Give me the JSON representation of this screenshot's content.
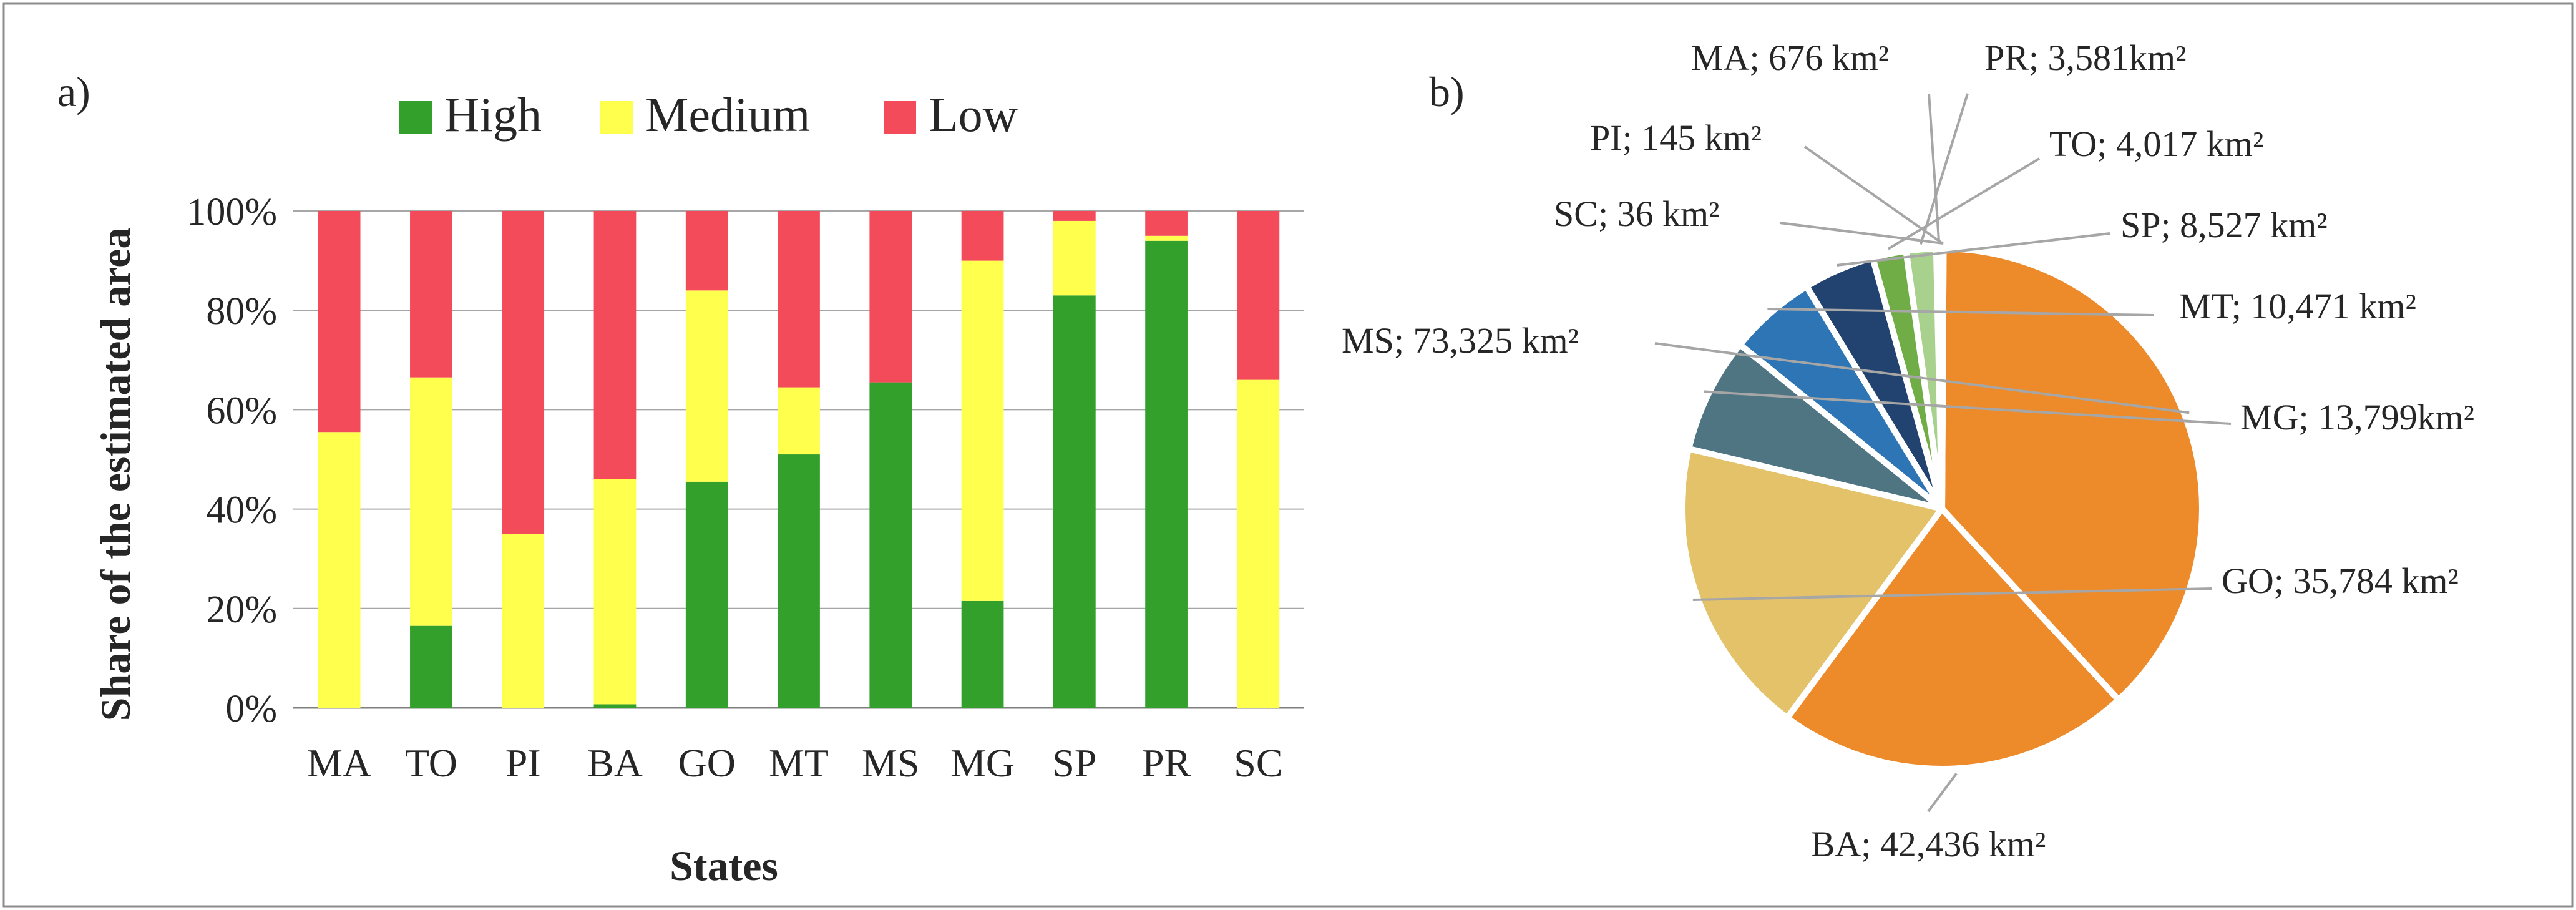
{
  "chart_data": [
    {
      "panel_label": "a)",
      "type": "bar",
      "stacked": true,
      "categories": [
        "MA",
        "TO",
        "PI",
        "BA",
        "GO",
        "MT",
        "MS",
        "MG",
        "SP",
        "PR",
        "SC"
      ],
      "series": [
        {
          "name": "High",
          "color": "#33a02c",
          "values": [
            0,
            16.5,
            0,
            0.7,
            45.5,
            51,
            65.5,
            21.5,
            83,
            94,
            0
          ]
        },
        {
          "name": "Medium",
          "color": "#ffff4d",
          "values": [
            55.5,
            50,
            35,
            45.3,
            38.5,
            13.5,
            0,
            68.5,
            15,
            1,
            66
          ]
        },
        {
          "name": "Low",
          "color": "#f44b5b",
          "values": [
            44.5,
            33.5,
            65,
            54,
            16,
            35.5,
            34.5,
            10,
            2,
            5,
            34
          ]
        }
      ],
      "xlabel": "States",
      "ylabel": "Share of the estimated area",
      "ylim": [
        0,
        100
      ],
      "yticks": [
        "0%",
        "20%",
        "40%",
        "60%",
        "80%",
        "100%"
      ],
      "grid": true,
      "legend_position": "top"
    },
    {
      "panel_label": "b)",
      "type": "pie",
      "start": "top",
      "direction": "counterclockwise",
      "slices": [
        {
          "name": "MA",
          "value": 676,
          "label": "MA; 676 km²",
          "color": "#f4b183"
        },
        {
          "name": "PR",
          "value": 3581,
          "label": "PR; 3,581km²",
          "color": "#a9d18e"
        },
        {
          "name": "TO",
          "value": 4017,
          "label": "TO; 4,017 km²",
          "color": "#70ad47"
        },
        {
          "name": "SP",
          "value": 8527,
          "label": "SP; 8,527 km²",
          "color": "#22436f"
        },
        {
          "name": "MT",
          "value": 10471,
          "label": "MT; 10,471 km²",
          "color": "#2e75b6"
        },
        {
          "name": "MG",
          "value": 13799,
          "label": "MG; 13,799km²",
          "color": "#4f7583"
        },
        {
          "name": "GO",
          "value": 35784,
          "label": "GO; 35,784 km²",
          "color": "#e4c26a"
        },
        {
          "name": "BA",
          "value": 42436,
          "label": "BA; 42,436 km²",
          "color": "#ed8b2b"
        },
        {
          "name": "MS",
          "value": 73325,
          "label": "MS; 73,325 km²",
          "color": "#ed8b2b"
        },
        {
          "name": "SC",
          "value": 36,
          "label": "SC; 36 km²",
          "color": "#f4b183"
        },
        {
          "name": "PI",
          "value": 145,
          "label": "PI; 145 km²",
          "color": "#f4b183"
        }
      ]
    }
  ]
}
